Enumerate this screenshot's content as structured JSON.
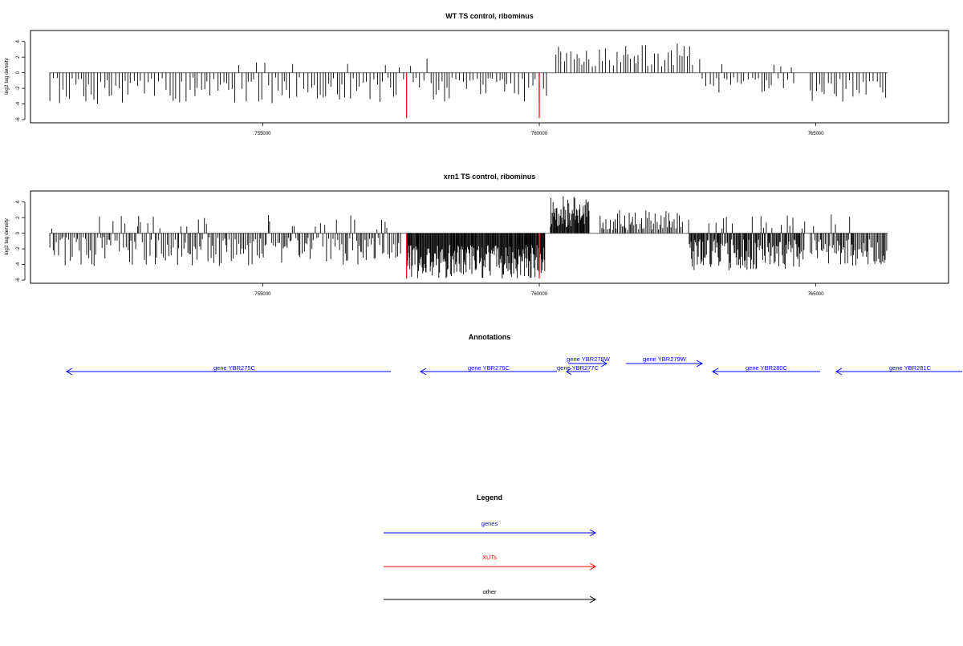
{
  "chart_data": [
    {
      "type": "bar",
      "title": "WT TS control, ribominus",
      "xlabel": "",
      "ylabel": "log2 tag density",
      "xlim": [
        750800,
        767400
      ],
      "ylim": [
        -6,
        5
      ],
      "x_ticks": [
        755000,
        760000,
        765000
      ],
      "y_ticks": [
        -6,
        -4,
        -2,
        0,
        2,
        4
      ],
      "grid": false,
      "seed": 7,
      "regions": [
        {
          "from": 751150,
          "to": 760150,
          "sign": -1,
          "step": 58,
          "min": 0.6,
          "max": 4.0,
          "posrate": 0.05,
          "posmax": 2.0
        },
        {
          "from": 760300,
          "to": 762800,
          "sign": 1,
          "step": 55,
          "min": 0.8,
          "max": 3.8,
          "posrate": 0.0,
          "posmax": 0
        },
        {
          "from": 762900,
          "to": 764600,
          "sign": -1,
          "step": 60,
          "min": 0.6,
          "max": 3.0,
          "posrate": 0.05,
          "posmax": 2.0
        },
        {
          "from": 764900,
          "to": 766300,
          "sign": -1,
          "step": 55,
          "min": 0.8,
          "max": 3.8,
          "posrate": 0.0,
          "posmax": 0
        }
      ],
      "highlights": [
        {
          "x": 757600,
          "y": -5.8,
          "color": "#e8242a"
        },
        {
          "x": 760000,
          "y": -5.8,
          "color": "#e8242a"
        }
      ]
    },
    {
      "type": "bar",
      "title": "xrn1 TS control, ribominus",
      "xlabel": "",
      "ylabel": "log2 tag density",
      "xlim": [
        750800,
        767400
      ],
      "ylim": [
        -6,
        5
      ],
      "x_ticks": [
        755000,
        760000,
        765000
      ],
      "y_ticks": [
        -6,
        -4,
        -2,
        0,
        2,
        4
      ],
      "grid": false,
      "seed": 13,
      "regions": [
        {
          "from": 751150,
          "to": 757500,
          "sign": -1,
          "step": 30,
          "min": 0.5,
          "max": 4.2,
          "posrate": 0.15,
          "posmax": 2.4
        },
        {
          "from": 757600,
          "to": 760100,
          "sign": -1,
          "step": 12,
          "min": 1.5,
          "max": 5.8,
          "posrate": 0.0,
          "posmax": 0
        },
        {
          "from": 760200,
          "to": 760900,
          "sign": 1,
          "step": 12,
          "min": 0.8,
          "max": 4.8,
          "posrate": 0.0,
          "posmax": 0
        },
        {
          "from": 761100,
          "to": 762600,
          "sign": 1,
          "step": 30,
          "min": 0.4,
          "max": 3.0,
          "posrate": 0.0,
          "posmax": 0
        },
        {
          "from": 762700,
          "to": 764800,
          "sign": -1,
          "step": 15,
          "min": 0.8,
          "max": 4.8,
          "posrate": 0.1,
          "posmax": 2.3
        },
        {
          "from": 764900,
          "to": 766300,
          "sign": -1,
          "step": 22,
          "min": 0.8,
          "max": 4.2,
          "posrate": 0.05,
          "posmax": 3.4
        }
      ],
      "highlights": [
        {
          "x": 757600,
          "y": -5.8,
          "color": "#e8242a"
        },
        {
          "x": 760000,
          "y": -5.8,
          "color": "#e8242a"
        }
      ]
    }
  ],
  "annotations": {
    "title": "Annotations",
    "genes": [
      {
        "label": "gene YBR275C"
      },
      {
        "label": "gene YBR276C"
      },
      {
        "label": "gene YBR277C"
      },
      {
        "label": "gene YBR278W"
      },
      {
        "label": "gene YBR279W"
      },
      {
        "label": "gene YBR280C"
      },
      {
        "label": "gene YBR281C"
      }
    ]
  },
  "legend": {
    "title": "Legend",
    "items": [
      {
        "label": "genes",
        "color": "#0000ff"
      },
      {
        "label": "XUTs",
        "color": "#ff0000"
      },
      {
        "label": "other",
        "color": "#000000"
      }
    ]
  }
}
